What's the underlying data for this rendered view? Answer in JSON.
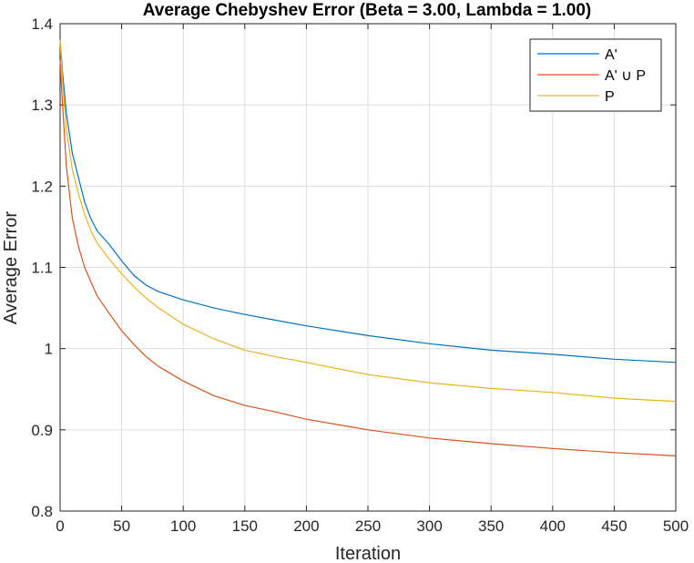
{
  "chart_data": {
    "type": "line",
    "title": "Average Chebyshev Error (Beta = 3.00, Lambda = 1.00)",
    "xlabel": "Iteration",
    "ylabel": "Average Error",
    "xlim": [
      0,
      500
    ],
    "ylim": [
      0.8,
      1.4
    ],
    "xticks": [
      "0",
      "50",
      "100",
      "150",
      "200",
      "250",
      "300",
      "350",
      "400",
      "450",
      "500"
    ],
    "yticks": [
      "0.8",
      "0.9",
      "1",
      "1.1",
      "1.2",
      "1.3",
      "1.4"
    ],
    "grid": true,
    "legend_position": "top-right",
    "x": [
      0,
      2,
      5,
      10,
      15,
      20,
      25,
      30,
      40,
      50,
      60,
      70,
      80,
      100,
      125,
      150,
      175,
      200,
      250,
      300,
      350,
      400,
      450,
      500
    ],
    "series": [
      {
        "name": "A'",
        "color": "#0072BD",
        "values": [
          1.38,
          1.34,
          1.29,
          1.24,
          1.21,
          1.18,
          1.16,
          1.145,
          1.128,
          1.108,
          1.09,
          1.078,
          1.07,
          1.06,
          1.05,
          1.042,
          1.035,
          1.028,
          1.016,
          1.006,
          0.998,
          0.993,
          0.987,
          0.983
        ]
      },
      {
        "name": "A' ∪ P",
        "color": "#D95319",
        "values": [
          1.355,
          1.3,
          1.225,
          1.16,
          1.125,
          1.1,
          1.082,
          1.065,
          1.043,
          1.022,
          1.005,
          0.99,
          0.978,
          0.96,
          0.942,
          0.93,
          0.922,
          0.913,
          0.9,
          0.89,
          0.883,
          0.877,
          0.872,
          0.868
        ]
      },
      {
        "name": "P",
        "color": "#EDB120",
        "values": [
          1.38,
          1.33,
          1.27,
          1.22,
          1.19,
          1.165,
          1.145,
          1.13,
          1.11,
          1.092,
          1.076,
          1.062,
          1.05,
          1.03,
          1.012,
          0.998,
          0.99,
          0.983,
          0.968,
          0.958,
          0.951,
          0.946,
          0.939,
          0.935
        ]
      }
    ]
  }
}
